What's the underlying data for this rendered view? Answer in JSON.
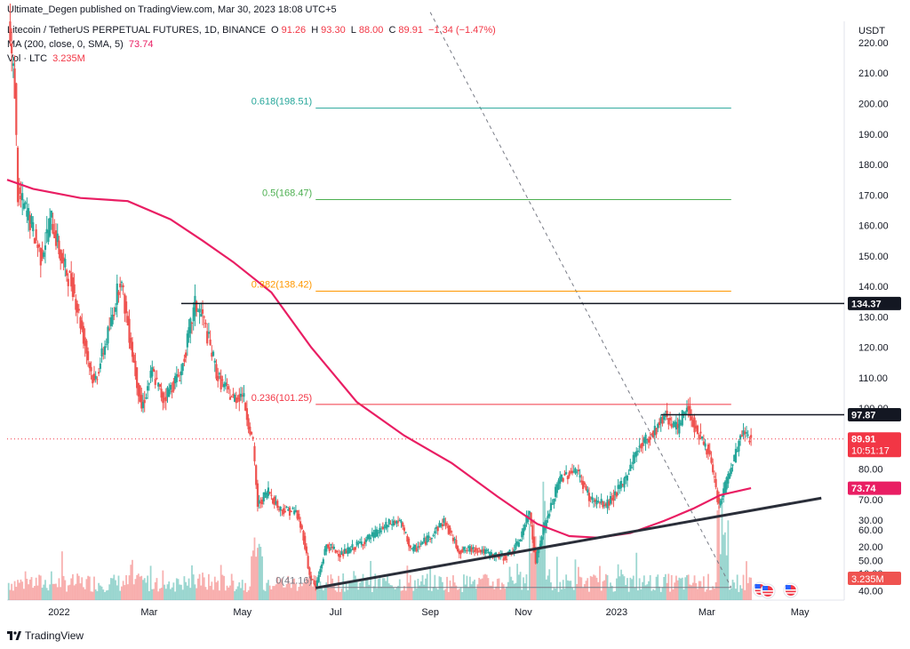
{
  "publisher_line": "Ultimate_Degen published on TradingView.com, Mar 30, 2023 18:08 UTC+5",
  "legend": {
    "symbol": "Litecoin / TetherUS PERPETUAL FUTURES, 1D, BINANCE",
    "o_label": "O",
    "o_value": "91.26",
    "h_label": "H",
    "h_value": "93.30",
    "l_label": "L",
    "l_value": "88.00",
    "c_label": "C",
    "c_value": "89.91",
    "change": "−1.34 (−1.47%)",
    "ma_label": "MA (200, close, 0, SMA, 5)",
    "ma_value": "73.74",
    "vol_label": "Vol · LTC",
    "vol_value": "3.235M"
  },
  "footer": {
    "brand": "TradingView"
  },
  "colors": {
    "up": "#26a69a",
    "down": "#ef5350",
    "ma": "#e91e63",
    "fib_0618": "#26a69a",
    "fib_05": "#4caf50",
    "fib_0382": "#ff9800",
    "fib_0236": "#f23645",
    "fib_0": "#787b86",
    "hline": "#131722",
    "price_tag": "#f23645",
    "ma_tag": "#e91e63"
  },
  "chart_data": {
    "type": "candlestick",
    "y_axis_unit": "USDT",
    "ylim": [
      37,
      227
    ],
    "xlim": [
      "2021-11-28",
      "2023-05-30"
    ],
    "y_ticks": [
      40,
      50,
      60,
      70,
      80,
      90,
      100,
      110,
      120,
      130,
      140,
      150,
      160,
      170,
      180,
      190,
      200,
      210,
      220
    ],
    "y_tick_labels": [
      "40.00",
      "50.00",
      "60.00",
      "70.00",
      "80.00",
      "90.00",
      "100.00",
      "110.00",
      "120.00",
      "130.00",
      "140.00",
      "150.00",
      "160.00",
      "170.00",
      "180.00",
      "190.00",
      "200.00",
      "210.00",
      "220.00"
    ],
    "x_ticks": [
      {
        "date": "2022-01-01",
        "label": "2022"
      },
      {
        "date": "2022-03-01",
        "label": "Mar"
      },
      {
        "date": "2022-05-01",
        "label": "May"
      },
      {
        "date": "2022-07-01",
        "label": "Jul"
      },
      {
        "date": "2022-09-01",
        "label": "Sep"
      },
      {
        "date": "2022-11-01",
        "label": "Nov"
      },
      {
        "date": "2023-01-01",
        "label": "2023"
      },
      {
        "date": "2023-03-01",
        "label": "Mar"
      },
      {
        "date": "2023-05-01",
        "label": "May"
      }
    ],
    "price_path": [
      [
        "2021-11-29",
        225
      ],
      [
        "2021-12-03",
        205
      ],
      [
        "2021-12-05",
        170
      ],
      [
        "2021-12-12",
        163
      ],
      [
        "2021-12-20",
        150
      ],
      [
        "2021-12-27",
        162
      ],
      [
        "2022-01-03",
        148
      ],
      [
        "2022-01-10",
        140
      ],
      [
        "2022-01-21",
        114
      ],
      [
        "2022-01-24",
        108
      ],
      [
        "2022-02-04",
        128
      ],
      [
        "2022-02-10",
        143
      ],
      [
        "2022-02-20",
        112
      ],
      [
        "2022-02-24",
        100
      ],
      [
        "2022-03-03",
        112
      ],
      [
        "2022-03-10",
        103
      ],
      [
        "2022-03-22",
        112
      ],
      [
        "2022-03-31",
        134
      ],
      [
        "2022-04-05",
        130
      ],
      [
        "2022-04-15",
        110
      ],
      [
        "2022-04-25",
        103
      ],
      [
        "2022-05-01",
        105
      ],
      [
        "2022-05-08",
        88
      ],
      [
        "2022-05-11",
        68
      ],
      [
        "2022-05-18",
        73
      ],
      [
        "2022-05-25",
        67
      ],
      [
        "2022-06-05",
        66
      ],
      [
        "2022-06-10",
        58
      ],
      [
        "2022-06-14",
        45
      ],
      [
        "2022-06-18",
        41.2
      ],
      [
        "2022-06-25",
        55
      ],
      [
        "2022-07-05",
        52
      ],
      [
        "2022-07-15",
        55
      ],
      [
        "2022-07-25",
        58
      ],
      [
        "2022-08-05",
        62
      ],
      [
        "2022-08-12",
        63
      ],
      [
        "2022-08-20",
        53
      ],
      [
        "2022-08-30",
        57
      ],
      [
        "2022-09-10",
        63
      ],
      [
        "2022-09-20",
        53
      ],
      [
        "2022-10-01",
        54
      ],
      [
        "2022-10-10",
        52
      ],
      [
        "2022-10-20",
        51
      ],
      [
        "2022-10-28",
        55
      ],
      [
        "2022-11-05",
        66
      ],
      [
        "2022-11-09",
        50
      ],
      [
        "2022-11-14",
        60
      ],
      [
        "2022-11-25",
        77
      ],
      [
        "2022-12-05",
        80
      ],
      [
        "2022-12-15",
        70
      ],
      [
        "2022-12-25",
        68
      ],
      [
        "2023-01-05",
        75
      ],
      [
        "2023-01-15",
        87
      ],
      [
        "2023-01-25",
        92
      ],
      [
        "2023-02-02",
        98
      ],
      [
        "2023-02-10",
        93
      ],
      [
        "2023-02-16",
        101
      ],
      [
        "2023-02-22",
        93
      ],
      [
        "2023-03-02",
        86
      ],
      [
        "2023-03-09",
        68
      ],
      [
        "2023-03-14",
        76
      ],
      [
        "2023-03-20",
        85
      ],
      [
        "2023-03-24",
        92
      ],
      [
        "2023-03-30",
        89.91
      ]
    ],
    "ma_200": [
      [
        "2021-11-28",
        175
      ],
      [
        "2021-12-15",
        172
      ],
      [
        "2022-01-15",
        169
      ],
      [
        "2022-02-15",
        168
      ],
      [
        "2022-03-15",
        162
      ],
      [
        "2022-04-05",
        155
      ],
      [
        "2022-04-25",
        148
      ],
      [
        "2022-05-20",
        138
      ],
      [
        "2022-06-15",
        120
      ],
      [
        "2022-07-15",
        102
      ],
      [
        "2022-08-15",
        91
      ],
      [
        "2022-09-15",
        82
      ],
      [
        "2022-10-15",
        71
      ],
      [
        "2022-11-10",
        62
      ],
      [
        "2022-12-01",
        58
      ],
      [
        "2022-12-20",
        57.5
      ],
      [
        "2023-01-10",
        59
      ],
      [
        "2023-02-01",
        63
      ],
      [
        "2023-02-20",
        67
      ],
      [
        "2023-03-10",
        71.5
      ],
      [
        "2023-03-30",
        73.74
      ]
    ],
    "volume_max_m": 50,
    "fib_levels": [
      {
        "label": "0.618(198.51)",
        "value": 198.51,
        "colorKey": "fib_0618"
      },
      {
        "label": "0.5(168.47)",
        "value": 168.47,
        "colorKey": "fib_05"
      },
      {
        "label": "0.382(138.42)",
        "value": 138.42,
        "colorKey": "fib_0382"
      },
      {
        "label": "0.236(101.25)",
        "value": 101.25,
        "colorKey": "fib_0236"
      },
      {
        "label": "0(41.16)",
        "value": 41.16,
        "colorKey": "fib_0"
      }
    ],
    "fib_range": [
      "2022-06-18",
      "2023-03-17"
    ],
    "horizontal_lines": [
      {
        "value": 134.37,
        "from": "2022-03-22",
        "tag": "134.37"
      },
      {
        "value": 97.87,
        "from": "2023-01-30",
        "tag": "97.87"
      }
    ],
    "trendline": {
      "from": [
        "2022-06-18",
        41.0
      ],
      "to": [
        "2023-05-15",
        70.5
      ]
    },
    "dashed_line": {
      "from": [
        "2022-09-01",
        230
      ],
      "to": [
        "2023-03-17",
        41.16
      ]
    },
    "last_price": {
      "value": 89.91,
      "tag": "89.91",
      "countdown": "10:51:17"
    },
    "ma_tag": {
      "value": 73.74,
      "tag": "73.74"
    },
    "volume_tag": "3.235M",
    "vol_ticks": [
      {
        "value": 10,
        "label": "10.00"
      },
      {
        "value": 20,
        "label": "20.00"
      },
      {
        "value": 30,
        "label": "30.00"
      }
    ]
  }
}
